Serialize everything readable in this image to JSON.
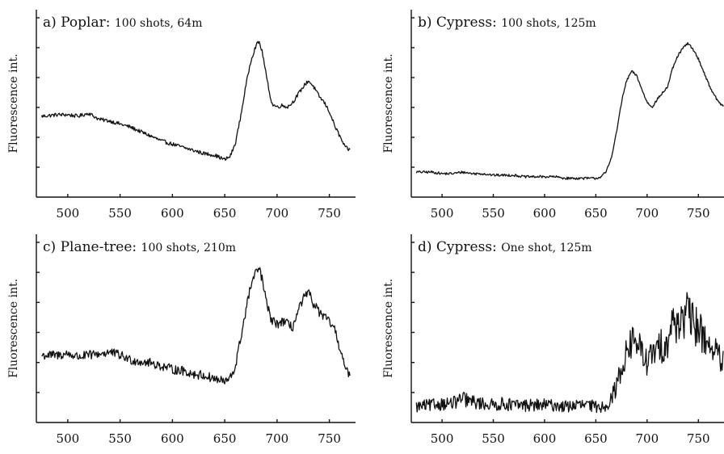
{
  "chart_data": [
    {
      "type": "line",
      "label": "a)",
      "title": "Poplar:",
      "subtitle": "100 shots, 64m",
      "ylabel": "Fluorescence int.",
      "xlabel": "",
      "xlim": [
        470,
        775
      ],
      "ylim": [
        0,
        1
      ],
      "xticks": [
        "500",
        "550",
        "600",
        "650",
        "700",
        "750"
      ],
      "noise": 0.012,
      "series": [
        {
          "x": [
            475,
            490,
            500,
            510,
            520,
            530,
            540,
            550,
            560,
            570,
            580,
            590,
            600,
            610,
            620,
            630,
            640,
            650,
            655,
            660,
            665,
            670,
            675,
            680,
            683,
            686,
            690,
            695,
            700,
            705,
            710,
            715,
            720,
            725,
            730,
            735,
            740,
            745,
            750,
            755,
            760,
            765,
            770
          ],
          "y": [
            0.49,
            0.5,
            0.5,
            0.49,
            0.51,
            0.47,
            0.46,
            0.44,
            0.42,
            0.39,
            0.36,
            0.33,
            0.31,
            0.29,
            0.27,
            0.25,
            0.24,
            0.21,
            0.23,
            0.31,
            0.48,
            0.68,
            0.85,
            0.95,
            0.97,
            0.9,
            0.74,
            0.57,
            0.55,
            0.56,
            0.55,
            0.58,
            0.63,
            0.68,
            0.72,
            0.68,
            0.62,
            0.58,
            0.52,
            0.43,
            0.36,
            0.29,
            0.27
          ]
        }
      ]
    },
    {
      "type": "line",
      "label": "b)",
      "title": "Cypress:",
      "subtitle": "100 shots, 125m",
      "ylabel": "Fluorescence int.",
      "xlabel": "",
      "xlim": [
        470,
        775
      ],
      "ylim": [
        0,
        1
      ],
      "xticks": [
        "500",
        "550",
        "600",
        "650",
        "700",
        "750"
      ],
      "noise": 0.008,
      "series": [
        {
          "x": [
            475,
            490,
            500,
            510,
            520,
            530,
            540,
            550,
            560,
            570,
            580,
            590,
            600,
            610,
            620,
            630,
            640,
            650,
            655,
            660,
            665,
            670,
            675,
            680,
            685,
            690,
            695,
            700,
            705,
            710,
            715,
            720,
            725,
            730,
            735,
            740,
            745,
            750,
            755,
            760,
            765,
            770,
            775
          ],
          "y": [
            0.13,
            0.13,
            0.12,
            0.12,
            0.13,
            0.12,
            0.12,
            0.11,
            0.11,
            0.11,
            0.1,
            0.1,
            0.1,
            0.1,
            0.09,
            0.09,
            0.09,
            0.09,
            0.1,
            0.13,
            0.22,
            0.38,
            0.58,
            0.72,
            0.78,
            0.75,
            0.66,
            0.58,
            0.55,
            0.6,
            0.64,
            0.68,
            0.8,
            0.88,
            0.93,
            0.96,
            0.92,
            0.86,
            0.78,
            0.7,
            0.63,
            0.58,
            0.55
          ]
        }
      ]
    },
    {
      "type": "line",
      "label": "c)",
      "title": "Plane-tree:",
      "subtitle": "100 shots, 210m",
      "ylabel": "Fluorescence int.",
      "xlabel": "",
      "xlim": [
        470,
        775
      ],
      "ylim": [
        0,
        1
      ],
      "xticks": [
        "500",
        "550",
        "600",
        "650",
        "700",
        "750"
      ],
      "noise": 0.03,
      "series": [
        {
          "x": [
            475,
            490,
            500,
            510,
            520,
            530,
            540,
            550,
            560,
            570,
            580,
            590,
            600,
            610,
            620,
            630,
            640,
            650,
            655,
            660,
            665,
            670,
            675,
            680,
            683,
            686,
            690,
            695,
            700,
            705,
            710,
            715,
            720,
            725,
            730,
            735,
            740,
            745,
            750,
            755,
            760,
            765,
            770
          ],
          "y": [
            0.4,
            0.4,
            0.41,
            0.39,
            0.4,
            0.41,
            0.42,
            0.4,
            0.37,
            0.36,
            0.35,
            0.33,
            0.31,
            0.3,
            0.28,
            0.27,
            0.25,
            0.23,
            0.25,
            0.32,
            0.5,
            0.68,
            0.85,
            0.93,
            0.96,
            0.88,
            0.73,
            0.62,
            0.6,
            0.62,
            0.6,
            0.58,
            0.68,
            0.76,
            0.8,
            0.73,
            0.68,
            0.64,
            0.62,
            0.56,
            0.45,
            0.32,
            0.25
          ]
        }
      ]
    },
    {
      "type": "line",
      "label": "d)",
      "title": "Cypress:",
      "subtitle": "One shot, 125m",
      "ylabel": "Fluorescence int.",
      "xlabel": "",
      "xlim": [
        470,
        775
      ],
      "ylim": [
        0,
        1
      ],
      "xticks": [
        "500",
        "550",
        "600",
        "650",
        "700",
        "750"
      ],
      "noise": 0.085,
      "series": [
        {
          "x": [
            475,
            490,
            500,
            510,
            520,
            530,
            540,
            550,
            560,
            570,
            580,
            590,
            600,
            610,
            620,
            630,
            640,
            650,
            655,
            660,
            665,
            670,
            675,
            680,
            685,
            690,
            695,
            700,
            705,
            710,
            715,
            720,
            725,
            730,
            735,
            740,
            745,
            750,
            755,
            760,
            765,
            770,
            775
          ],
          "y": [
            0.07,
            0.08,
            0.09,
            0.09,
            0.12,
            0.1,
            0.09,
            0.08,
            0.09,
            0.08,
            0.08,
            0.08,
            0.08,
            0.08,
            0.07,
            0.08,
            0.08,
            0.07,
            0.07,
            0.08,
            0.12,
            0.2,
            0.32,
            0.42,
            0.48,
            0.5,
            0.4,
            0.36,
            0.4,
            0.44,
            0.46,
            0.5,
            0.6,
            0.62,
            0.64,
            0.66,
            0.6,
            0.58,
            0.52,
            0.48,
            0.44,
            0.38,
            0.34
          ]
        }
      ]
    }
  ]
}
